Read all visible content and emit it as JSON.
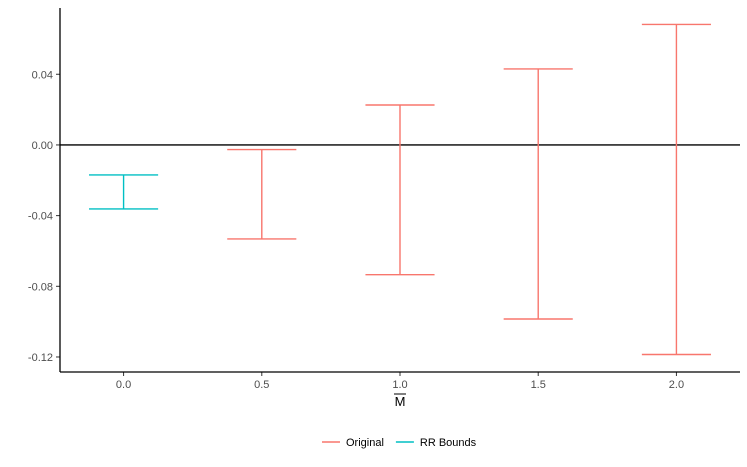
{
  "chart_data": {
    "type": "errorbar",
    "title": "",
    "xlabel": "M",
    "xlabel_overline": true,
    "ylabel": "",
    "x_ticks": [
      "0.0",
      "0.5",
      "1.0",
      "1.5",
      "2.0"
    ],
    "y_ticks": [
      "-0.12",
      "-0.08",
      "-0.04",
      "0.00",
      "0.04"
    ],
    "y_tick_values": [
      -0.12,
      -0.08,
      -0.04,
      0.0,
      0.04
    ],
    "xlim": [
      -0.23,
      2.23
    ],
    "ylim": [
      -0.1285,
      0.0775
    ],
    "reference_line_y": 0.0,
    "grid": false,
    "legend_position": "bottom",
    "series": [
      {
        "name": "Original",
        "color": "#F8766D",
        "points": [
          {
            "x": 0.5,
            "lb": -0.0532,
            "ub": -0.0026
          },
          {
            "x": 1.0,
            "lb": -0.0734,
            "ub": 0.0226
          },
          {
            "x": 1.5,
            "lb": -0.0985,
            "ub": 0.043
          },
          {
            "x": 2.0,
            "lb": -0.1186,
            "ub": 0.0682
          }
        ]
      },
      {
        "name": "RR Bounds",
        "color": "#00BFC4",
        "points": [
          {
            "x": 0.0,
            "lb": -0.0362,
            "ub": -0.017
          }
        ]
      }
    ]
  }
}
